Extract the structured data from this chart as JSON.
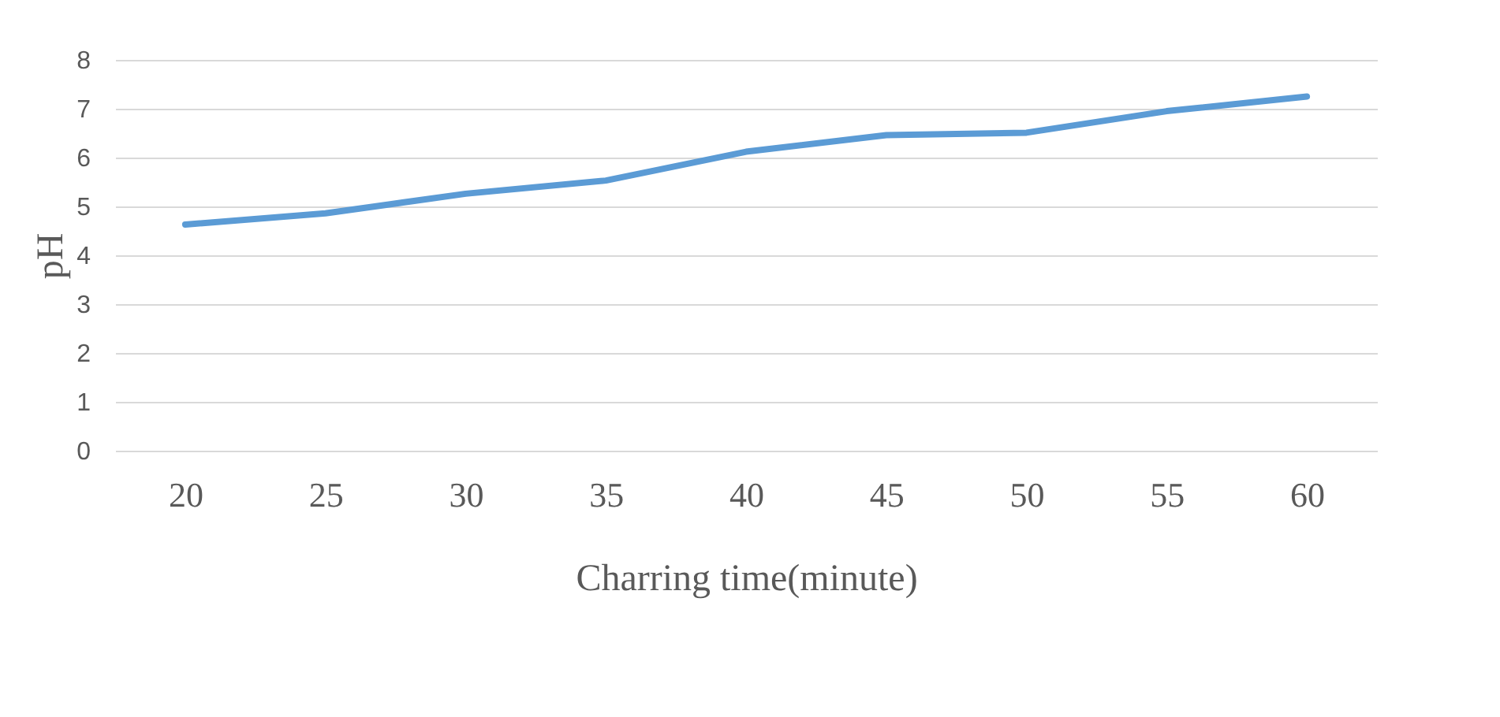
{
  "chart_data": {
    "type": "line",
    "xlabel": "Charring time(minute)",
    "ylabel": "pH",
    "categories": [
      "20",
      "25",
      "30",
      "35",
      "40",
      "45",
      "50",
      "55",
      "60"
    ],
    "series": [
      {
        "color": "#5b9bd5",
        "values": [
          4.63,
          4.86,
          5.26,
          5.53,
          6.12,
          6.46,
          6.51,
          6.95,
          7.25
        ]
      }
    ],
    "ylim": [
      0,
      8
    ],
    "yticks": [
      0,
      1,
      2,
      3,
      4,
      5,
      6,
      7,
      8
    ],
    "grid": "y",
    "marker": "none",
    "line_style": "solid"
  }
}
